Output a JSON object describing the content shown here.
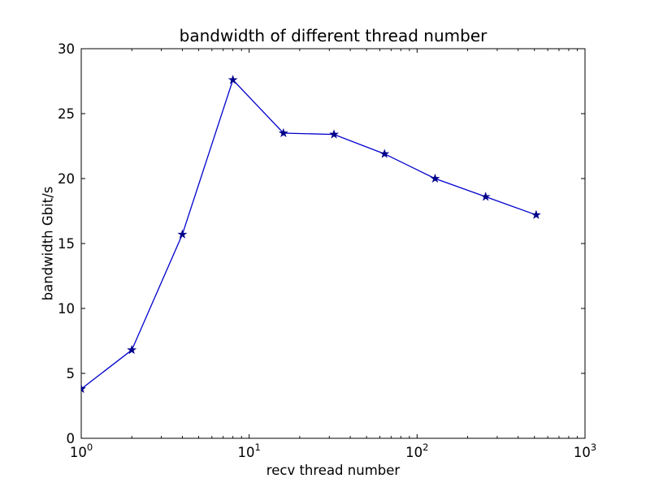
{
  "figure": {
    "title": "bandwidth of different thread number",
    "xlabel": "recv thread number",
    "ylabel": "bandwidth Gbit/s",
    "background": "#ffffff"
  },
  "chart_data": {
    "type": "line",
    "title": "bandwidth of different thread number",
    "xlabel": "recv thread number",
    "ylabel": "bandwidth Gbit/s",
    "x_scale": "log10",
    "xlim": [
      1,
      1000
    ],
    "ylim": [
      0,
      30
    ],
    "grid": false,
    "legend": "none",
    "background": "#ffffff",
    "axis_color": "#000000",
    "x": [
      1,
      2,
      4,
      8,
      16,
      32,
      64,
      128,
      256,
      512
    ],
    "series": [
      {
        "name": "bandwidth",
        "values": [
          3.8,
          6.8,
          15.7,
          27.6,
          23.5,
          23.4,
          21.9,
          20.0,
          18.6,
          17.2
        ],
        "color": "#0000cd",
        "marker": "star",
        "marker_color": "#00008b"
      }
    ],
    "yticks": {
      "values": [
        0,
        5,
        10,
        15,
        20,
        25,
        30
      ],
      "labels": [
        "0",
        "5",
        "10",
        "15",
        "20",
        "25",
        "30"
      ]
    },
    "xticks": {
      "values": [
        1,
        10,
        100,
        1000
      ],
      "base": "10",
      "exponents": [
        "0",
        "1",
        "2",
        "3"
      ]
    },
    "x_minor_tick_mantissas": [
      2,
      3,
      4,
      5,
      6,
      7,
      8,
      9
    ]
  }
}
